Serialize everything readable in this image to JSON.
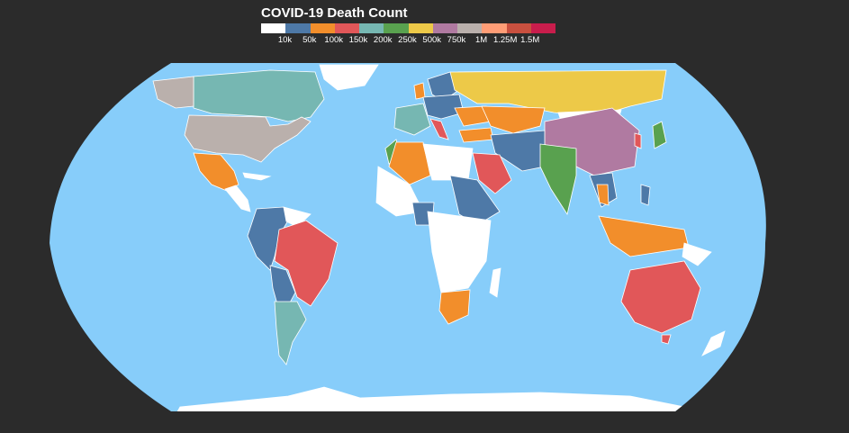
{
  "title": "COVID-19 Death Count",
  "colors": {
    "page_bg": "#2b2b2b",
    "ocean": "#87cdfa",
    "country_border": "#ffffff"
  },
  "legend": {
    "bins": [
      {
        "label": "10k",
        "color": "#ffffff"
      },
      {
        "label": "50k",
        "color": "#4e79a7"
      },
      {
        "label": "100k",
        "color": "#f28e2b"
      },
      {
        "label": "150k",
        "color": "#e15759"
      },
      {
        "label": "200k",
        "color": "#76b7b2"
      },
      {
        "label": "250k",
        "color": "#59a14f"
      },
      {
        "label": "500k",
        "color": "#edc948"
      },
      {
        "label": "750k",
        "color": "#b07aa1"
      },
      {
        "label": "1M",
        "color": "#bab0ac"
      },
      {
        "label": "1.25M",
        "color": "#ff9d76"
      },
      {
        "label": "1.5M",
        "color": "#c9503f"
      },
      {
        "label": "",
        "color": "#c81d4c"
      }
    ]
  },
  "regions": [
    {
      "name": "canada",
      "color": "#76b7b2"
    },
    {
      "name": "united-states",
      "color": "#bab0ac"
    },
    {
      "name": "alaska",
      "color": "#bab0ac"
    },
    {
      "name": "mexico",
      "color": "#f28e2b"
    },
    {
      "name": "brazil",
      "color": "#e15759"
    },
    {
      "name": "argentina",
      "color": "#76b7b2"
    },
    {
      "name": "russia",
      "color": "#edc948"
    },
    {
      "name": "china",
      "color": "#b07aa1"
    },
    {
      "name": "india",
      "color": "#59a14f"
    },
    {
      "name": "australia",
      "color": "#e15759"
    },
    {
      "name": "saudi-arabia",
      "color": "#e15759"
    },
    {
      "name": "indonesia",
      "color": "#f28e2b"
    },
    {
      "name": "south-africa",
      "color": "#f28e2b"
    },
    {
      "name": "kazakhstan",
      "color": "#f28e2b"
    },
    {
      "name": "algeria",
      "color": "#f28e2b"
    },
    {
      "name": "japan",
      "color": "#59a14f"
    }
  ]
}
